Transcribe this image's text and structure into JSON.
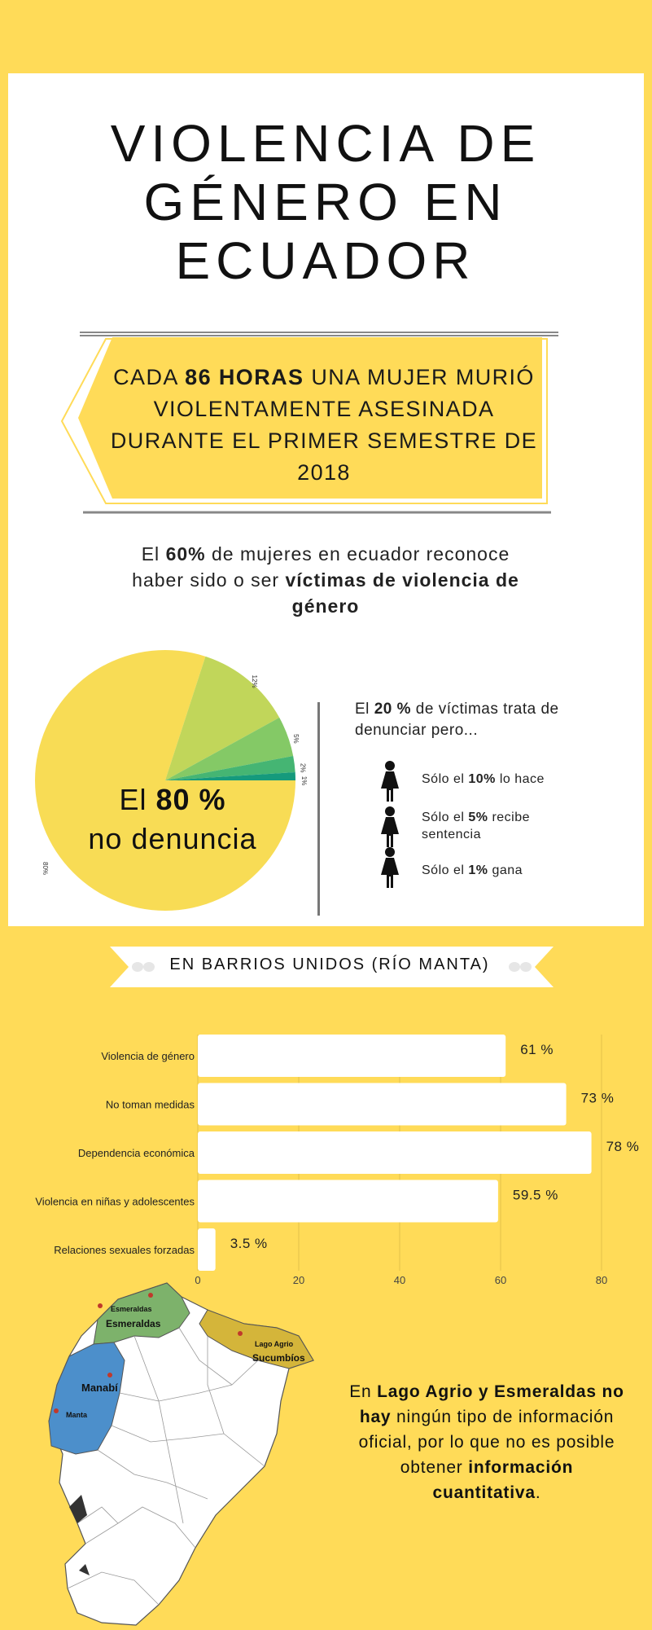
{
  "title": "VIOLENCIA DE GÉNERO EN ECUADOR",
  "banner": {
    "pre": "CADA ",
    "bold": "86 HORAS",
    "post": " UNA MUJER MURIÓ VIOLENTAMENTE ASESINADA DURANTE EL PRIMER SEMESTRE DE 2018"
  },
  "stat60": {
    "p1": "El ",
    "b1": "60%",
    "p2": " de mujeres en ecuador reconoce haber sido o ser ",
    "b2": "víctimas de violencia de género"
  },
  "pie_label": {
    "pre": "El ",
    "bold": "80 %",
    "post": "no denuncia"
  },
  "report": {
    "p1": "El ",
    "b1": "20 %",
    "p2": " de víctimas trata de denunciar pero...",
    "items": [
      {
        "pre": "Sólo el ",
        "bold": "10%",
        "post": " lo hace"
      },
      {
        "pre": "Sólo el ",
        "bold": "5%",
        "post": " recibe sentencia"
      },
      {
        "pre": "Sólo el ",
        "bold": "1%",
        "post": " gana"
      }
    ]
  },
  "ribbon": "EN BARRIOS UNIDOS (RÍO MANTA)",
  "map_labels": {
    "esmeraldas_city": "Esmeraldas",
    "esmeraldas_prov": "Esmeraldas",
    "lago_agrio": "Lago Agrio",
    "sucumbios": "Sucumbíos",
    "manabi": "Manabí",
    "manta": "Manta"
  },
  "final": {
    "p1": "En ",
    "b1": "Lago Agrio y Esmeraldas no hay",
    "p2": " ningún tipo de información oficial, por lo que no es posible obtener ",
    "b2": "información cuantitativa",
    "p3": "."
  },
  "chart_data": [
    {
      "type": "pie",
      "values": [
        80,
        12,
        5,
        2,
        1
      ],
      "labels": [
        "80%",
        "12%",
        "5%",
        "2%",
        "1%"
      ],
      "colors": [
        "#f8dc55",
        "#c1d65a",
        "#84c966",
        "#45b573",
        "#159a7c"
      ]
    },
    {
      "type": "bar",
      "orientation": "horizontal",
      "categories": [
        "Violencia de género",
        "No toman  medidas",
        "Dependencia económica",
        "Violencia en niñas y adolescentes",
        "Relaciones sexuales forzadas"
      ],
      "values": [
        61,
        73,
        78,
        59.5,
        3.5
      ],
      "value_labels": [
        "61 %",
        "73 %",
        "78 %",
        "59.5 %",
        "3.5 %"
      ],
      "xticks": [
        0,
        20,
        40,
        60,
        80
      ],
      "xlim": [
        0,
        80
      ],
      "grid": true,
      "bar_color": "#ffffff"
    }
  ]
}
